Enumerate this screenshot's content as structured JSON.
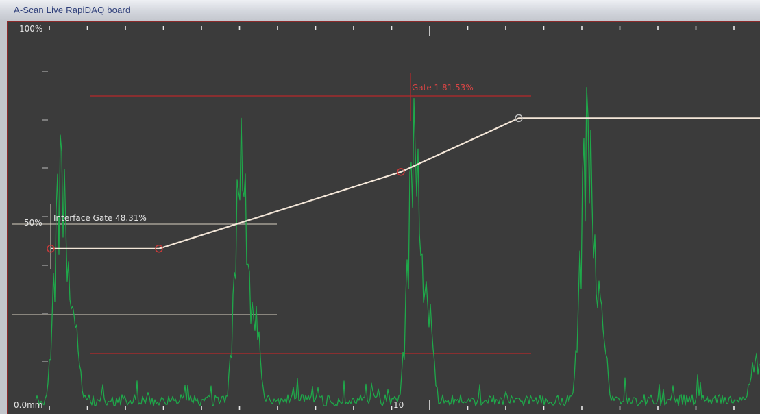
{
  "window": {
    "title": "A-Scan  Live RapiDAQ board"
  },
  "axes": {
    "y_top_label": "100%",
    "y_mid_label": "50%",
    "x_origin_label": "0.0mm",
    "x_mid_label": "10"
  },
  "gates": {
    "interface_gate_label": "Interface Gate 48.31%",
    "gate1_label": "Gate 1 81.53%"
  },
  "colors": {
    "background": "#3b3b3b",
    "signal": "#1fa84a",
    "gate": "#b8282a",
    "dac_curve": "#f3e6d8",
    "interface_gate": "#d8d2c0",
    "tick": "#e8e8e8",
    "label": "#e3e3e3",
    "gate_label": "#d84545"
  },
  "chart_data": {
    "type": "line",
    "title": "",
    "xlabel": "",
    "ylabel": "",
    "ylim": [
      0,
      100
    ],
    "x_tick_labels": [
      "0.0mm",
      "10"
    ],
    "y_tick_labels": [
      "0.0mm",
      "50%",
      "100%"
    ],
    "dac_curve": {
      "x_frac": [
        0.0,
        0.15,
        0.52,
        0.685,
        1.0
      ],
      "y_pct": [
        42,
        42,
        62,
        76,
        76
      ]
    },
    "signal_peaks": [
      {
        "x_frac": 0.07,
        "y_pct": 75
      },
      {
        "x_frac": 0.31,
        "y_pct": 76
      },
      {
        "x_frac": 0.54,
        "y_pct": 82
      },
      {
        "x_frac": 0.77,
        "y_pct": 87
      },
      {
        "x_frac": 0.995,
        "y_pct": 15
      }
    ],
    "gate_lines": [
      {
        "name": "Gate 1",
        "y_pct": 81.53
      },
      {
        "name": "Interface Gate",
        "y_pct": 48.31
      }
    ]
  }
}
